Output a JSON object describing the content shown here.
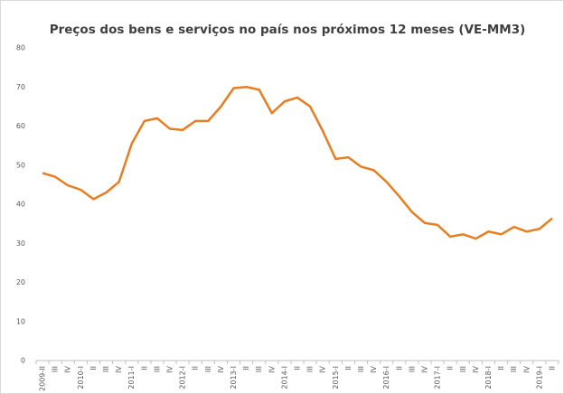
{
  "chart_data": {
    "type": "line",
    "title": "Preços dos bens e serviços no país nos próximos 12 meses (VE-MM3)",
    "categories": [
      "2009-II",
      "III",
      "IV",
      "2010-I",
      "II",
      "III",
      "IV",
      "2011-I",
      "II",
      "III",
      "IV",
      "2012-I",
      "II",
      "III",
      "IV",
      "2013-I",
      "II",
      "III",
      "IV",
      "2014-I",
      "II",
      "III",
      "IV",
      "2015-I",
      "II",
      "III",
      "IV",
      "2016-I",
      "II",
      "III",
      "IV",
      "2017-I",
      "II",
      "III",
      "IV",
      "2018-I",
      "II",
      "III",
      "IV",
      "2019-I",
      "II"
    ],
    "series": [
      {
        "name": "VE-MM3",
        "color": "#e67e22",
        "values": [
          48,
          47,
          44.8,
          43.7,
          41.3,
          43,
          45.7,
          55.5,
          61.3,
          62,
          59.3,
          59,
          61.3,
          61.3,
          65,
          69.7,
          70,
          69.3,
          63.3,
          66.3,
          67.3,
          65,
          58.7,
          51.6,
          52,
          49.6,
          48.7,
          45.7,
          42,
          38,
          35.2,
          34.7,
          31.7,
          32.3,
          31.2,
          33,
          32.3,
          34.2,
          33,
          33.7,
          36.4
        ]
      }
    ],
    "ylim": [
      0,
      80
    ],
    "yticks": [
      0,
      10,
      20,
      30,
      40,
      50,
      60,
      70,
      80
    ],
    "grid": false
  }
}
